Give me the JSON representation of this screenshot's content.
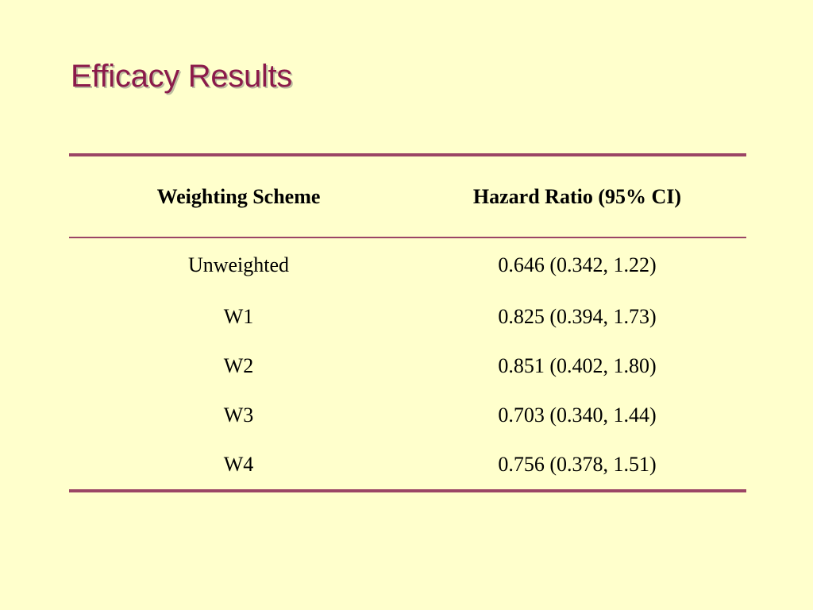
{
  "slide": {
    "title": "Efficacy Results"
  },
  "table": {
    "headers": {
      "scheme": "Weighting Scheme",
      "hazard_ratio": "Hazard Ratio (95% CI)"
    },
    "rows": [
      {
        "scheme": "Unweighted",
        "hazard_ratio": "0.646 (0.342, 1.22)"
      },
      {
        "scheme": "W1",
        "hazard_ratio": "0.825 (0.394, 1.73)"
      },
      {
        "scheme": "W2",
        "hazard_ratio": "0.851 (0.402, 1.80)"
      },
      {
        "scheme": "W3",
        "hazard_ratio": "0.703 (0.340, 1.44)"
      },
      {
        "scheme": "W4",
        "hazard_ratio": "0.756 (0.378, 1.51)"
      }
    ]
  },
  "colors": {
    "background": "#FFFFCC",
    "title": "#8B1A4A",
    "rule": "#9B4565",
    "text": "#000000"
  }
}
